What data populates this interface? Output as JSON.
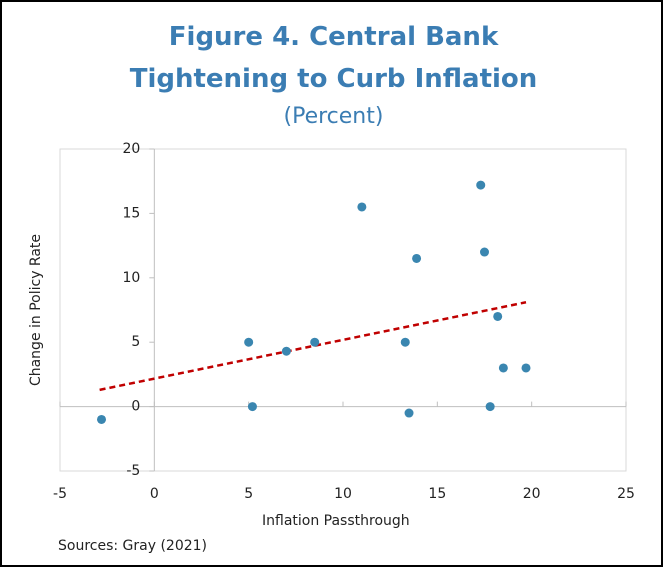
{
  "chart_data": {
    "type": "scatter",
    "title": "Figure 4. Central Bank Tightening to Curb Inflation",
    "subtitle": "(Percent)",
    "x_label": "Inflation Passthrough",
    "y_label": "Change in Policy Rate",
    "source": "Sources: Gray (2021)",
    "x": [
      -2.8,
      5,
      5.2,
      7.0,
      8.5,
      11.0,
      13.3,
      13.5,
      13.9,
      17.3,
      17.5,
      17.8,
      18.2,
      18.5,
      19.7
    ],
    "values": [
      -1,
      5,
      0,
      4.3,
      5,
      15.5,
      5,
      -0.5,
      11.5,
      17.2,
      12,
      0,
      7,
      3,
      3
    ],
    "color": "#3a86b0",
    "trendline": {
      "x": [
        -2.9,
        19.7
      ],
      "y": [
        1.3,
        8.1
      ],
      "color": "#c00000"
    },
    "xlim": [
      -5,
      25
    ],
    "xticks": [
      -5,
      0,
      5,
      10,
      15,
      20,
      25
    ],
    "ylim": [
      -5,
      20
    ],
    "yticks": [
      -5,
      0,
      5,
      10,
      15,
      20
    ]
  }
}
